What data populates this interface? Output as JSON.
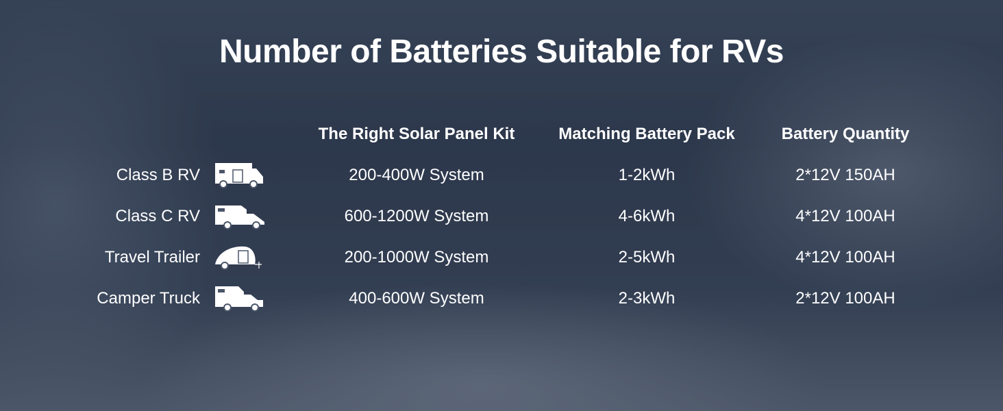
{
  "title": "Number of Batteries Suitable for RVs",
  "headers": [
    "The Right Solar Panel Kit",
    "Matching Battery Pack",
    "Battery Quantity"
  ],
  "rows": [
    {
      "type": "Class B RV",
      "icon": "class-b-rv-icon",
      "solar": "200-400W System",
      "pack": "1-2kWh",
      "quantity": "2*12V 150AH"
    },
    {
      "type": "Class C RV",
      "icon": "class-c-rv-icon",
      "solar": "600-1200W System",
      "pack": "4-6kWh",
      "quantity": "4*12V 100AH"
    },
    {
      "type": "Travel Trailer",
      "icon": "travel-trailer-icon",
      "solar": "200-1000W System",
      "pack": "2-5kWh",
      "quantity": "4*12V 100AH"
    },
    {
      "type": "Camper Truck",
      "icon": "camper-truck-icon",
      "solar": "400-600W System",
      "pack": "2-3kWh",
      "quantity": "2*12V 100AH"
    }
  ]
}
